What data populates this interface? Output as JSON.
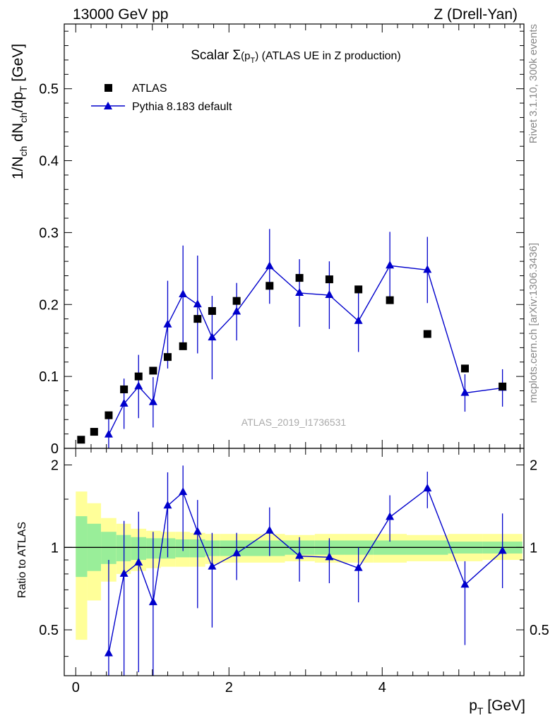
{
  "header": {
    "left": "13000 GeV pp",
    "right": "Z (Drell-Yan)"
  },
  "side_labels": {
    "rivet": "Rivet 3.1.10,  300k events",
    "mcplots": "mcplots.cern.ch [arXiv:1306.3436]"
  },
  "watermark": "ATLAS_2019_I1736531",
  "chart_data": {
    "type": "scatter",
    "title": {
      "prefix": "Scalar ",
      "sigma": "Σ",
      "arg_open": "(p",
      "arg_sub": "T",
      "arg_close": ")",
      "suffix": " (ATLAS UE in Z production)"
    },
    "ylabel_main": {
      "a": "1/N",
      "a_sub": "ch",
      "b": " dN",
      "b_sub": "ch",
      "c": "/dp",
      "c_sub": "T",
      "d": " [GeV]"
    },
    "xlabel": {
      "main": "p",
      "sub": "T",
      "unit": " [GeV]"
    },
    "ylabel_ratio": "Ratio to ATLAS",
    "xlim": [
      -0.15,
      5.85
    ],
    "ylim_main": [
      0,
      0.59
    ],
    "ylim_ratio": [
      0.34,
      2.3
    ],
    "x_ticks": [
      0,
      2,
      4
    ],
    "x_tick_labels": [
      "0",
      "2",
      "4"
    ],
    "y_ticks_main": [
      0,
      0.1,
      0.2,
      0.3,
      0.4,
      0.5
    ],
    "y_tick_labels_main": [
      "0",
      "0.1",
      "0.2",
      "0.3",
      "0.4",
      "0.5"
    ],
    "y_ticks_ratio": [
      0.5,
      1,
      2
    ],
    "y_tick_labels_ratio": [
      "0.5",
      "1",
      "2"
    ],
    "legend": [
      {
        "name": "ATLAS",
        "marker": "square",
        "color": "#000000"
      },
      {
        "name": "Pythia 8.183 default",
        "marker": "triangle",
        "color": "#0000cc"
      }
    ],
    "atlas": {
      "x": [
        0.07,
        0.24,
        0.43,
        0.63,
        0.82,
        1.01,
        1.2,
        1.4,
        1.59,
        1.78,
        2.1,
        2.53,
        2.92,
        3.31,
        3.69,
        4.1,
        4.59,
        5.08,
        5.57
      ],
      "y": [
        0.012,
        0.023,
        0.046,
        0.082,
        0.1,
        0.108,
        0.127,
        0.142,
        0.18,
        0.191,
        0.205,
        0.226,
        0.237,
        0.235,
        0.221,
        0.206,
        0.159,
        0.111,
        0.086
      ]
    },
    "pythia": {
      "x": [
        0.43,
        0.63,
        0.82,
        1.01,
        1.2,
        1.4,
        1.59,
        1.78,
        2.1,
        2.53,
        2.92,
        3.31,
        3.69,
        4.1,
        4.59,
        5.08,
        5.57
      ],
      "y": [
        0.019,
        0.062,
        0.086,
        0.064,
        0.172,
        0.214,
        0.2,
        0.154,
        0.19,
        0.253,
        0.216,
        0.213,
        0.177,
        0.254,
        0.248,
        0.077,
        0.084
      ],
      "yerr": [
        0.022,
        0.035,
        0.044,
        0.035,
        0.061,
        0.068,
        0.068,
        0.058,
        0.04,
        0.052,
        0.047,
        0.047,
        0.043,
        0.047,
        0.046,
        0.026,
        0.026
      ]
    },
    "ratio": {
      "x": [
        0.43,
        0.63,
        0.82,
        1.01,
        1.2,
        1.4,
        1.59,
        1.78,
        2.1,
        2.53,
        2.92,
        3.31,
        3.69,
        4.1,
        4.59,
        5.08,
        5.57
      ],
      "y": [
        0.41,
        0.8,
        0.88,
        0.63,
        1.42,
        1.59,
        1.14,
        0.85,
        0.95,
        1.15,
        0.93,
        0.92,
        0.84,
        1.29,
        1.64,
        0.73,
        0.97
      ],
      "err_lo": [
        0.41,
        0.46,
        0.53,
        0.33,
        0.5,
        0.62,
        0.54,
        0.34,
        0.19,
        0.22,
        0.18,
        0.18,
        0.21,
        0.24,
        0.25,
        0.29,
        0.26
      ],
      "err_hi": [
        0.49,
        0.45,
        0.47,
        0.51,
        0.46,
        0.4,
        0.35,
        0.28,
        0.18,
        0.25,
        0.16,
        0.16,
        0.16,
        0.26,
        0.25,
        0.16,
        0.36
      ]
    },
    "bands": {
      "edges": [
        0.0,
        0.15,
        0.33,
        0.53,
        0.72,
        0.92,
        1.11,
        1.3,
        1.49,
        1.69,
        1.88,
        2.32,
        2.73,
        3.12,
        3.5,
        3.88,
        4.32,
        4.86,
        5.31,
        5.83
      ],
      "green_lo": [
        0.78,
        0.82,
        0.87,
        0.89,
        0.9,
        0.91,
        0.91,
        0.92,
        0.92,
        0.93,
        0.93,
        0.93,
        0.94,
        0.94,
        0.94,
        0.94,
        0.94,
        0.95,
        0.95
      ],
      "green_hi": [
        1.3,
        1.22,
        1.14,
        1.11,
        1.09,
        1.08,
        1.08,
        1.07,
        1.07,
        1.06,
        1.06,
        1.06,
        1.06,
        1.06,
        1.06,
        1.06,
        1.06,
        1.05,
        1.05
      ],
      "yellow_lo": [
        0.46,
        0.64,
        0.75,
        0.8,
        0.82,
        0.84,
        0.85,
        0.85,
        0.85,
        0.87,
        0.88,
        0.88,
        0.89,
        0.88,
        0.88,
        0.88,
        0.89,
        0.89,
        0.9
      ],
      "yellow_hi": [
        1.6,
        1.45,
        1.28,
        1.22,
        1.17,
        1.15,
        1.14,
        1.14,
        1.13,
        1.12,
        1.12,
        1.12,
        1.11,
        1.12,
        1.12,
        1.12,
        1.11,
        1.12,
        1.12
      ]
    }
  }
}
